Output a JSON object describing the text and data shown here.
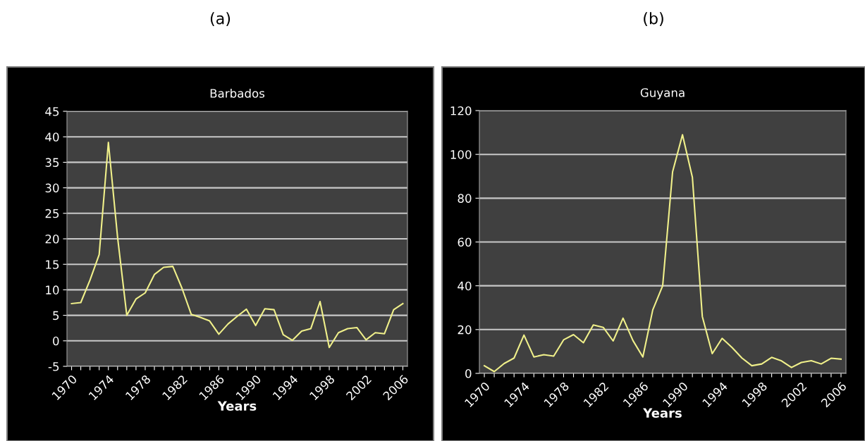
{
  "chart_data": [
    {
      "type": "line",
      "title": "Barbados",
      "xlabel": "Years",
      "annotations": [
        "(a)"
      ],
      "categories": [
        "1970",
        null,
        null,
        null,
        "1974",
        null,
        null,
        null,
        "1978",
        null,
        null,
        null,
        "1982",
        null,
        null,
        null,
        "1986",
        null,
        null,
        null,
        "1990",
        null,
        null,
        null,
        "1994",
        null,
        null,
        null,
        "1998",
        null,
        null,
        null,
        "2002",
        null,
        null,
        null,
        "2006"
      ],
      "series": [
        {
          "color": "#f0f08a",
          "values": [
            7.3,
            7.5,
            11.9,
            16.9,
            38.9,
            20.3,
            5.0,
            8.2,
            9.4,
            13.0,
            14.4,
            14.6,
            10.3,
            5.2,
            4.6,
            3.9,
            1.3,
            3.3,
            4.8,
            6.2,
            3.0,
            6.3,
            6.1,
            1.2,
            0.1,
            1.9,
            2.4,
            7.7,
            -1.3,
            1.6,
            2.4,
            2.6,
            0.2,
            1.6,
            1.4,
            6.1,
            7.3
          ]
        }
      ],
      "ylim": [
        -5,
        45
      ],
      "yticks": [
        -5,
        0,
        5,
        10,
        15,
        20,
        25,
        30,
        35,
        40,
        45
      ],
      "grid": "y",
      "marker": "none",
      "line_style": "solid"
    },
    {
      "type": "line",
      "title": "Guyana",
      "xlabel": "Years",
      "annotations": [
        "(b)"
      ],
      "categories": [
        "1970",
        null,
        null,
        null,
        "1974",
        null,
        null,
        null,
        "1978",
        null,
        null,
        null,
        "1982",
        null,
        null,
        null,
        "1986",
        null,
        null,
        null,
        "1990",
        null,
        null,
        null,
        "1994",
        null,
        null,
        null,
        "1998",
        null,
        null,
        null,
        "2002",
        null,
        null,
        null,
        "2006"
      ],
      "series": [
        {
          "color": "#f0f08a",
          "values": [
            3.5,
            0.8,
            4.5,
            7,
            17.5,
            7.5,
            8.5,
            7.9,
            15.3,
            17.7,
            14.0,
            22.1,
            21.0,
            14.8,
            25.2,
            15.0,
            7.5,
            29,
            40,
            92,
            109,
            89.5,
            26,
            9,
            16,
            11.8,
            7,
            3.5,
            4.3,
            7.3,
            5.7,
            2.7,
            5,
            5.8,
            4.3,
            6.9,
            6.5
          ]
        }
      ],
      "ylim": [
        0,
        120
      ],
      "yticks": [
        0,
        20,
        40,
        60,
        80,
        100,
        120
      ],
      "grid": "y",
      "marker": "none",
      "line_style": "solid"
    }
  ]
}
